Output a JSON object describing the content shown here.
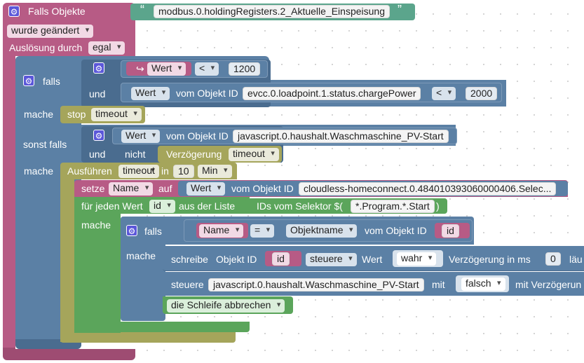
{
  "trigger": {
    "title": "Falls Objekte",
    "object_string": "modbus.0.holdingRegisters.2_Aktuelle_Einspeisung",
    "quote_open": "“",
    "quote_close": "”",
    "changed": "wurde geändert",
    "ausloesung_label": "Auslösung durch",
    "ausloesung_value": "egal"
  },
  "if1": {
    "falls": "falls",
    "und": "und",
    "mache": "mache",
    "sonst_falls": "sonst falls",
    "mache2": "mache",
    "cond1_var": "Wert",
    "cond1_op": "<",
    "cond1_num": "1200",
    "cond2_wert": "Wert",
    "cond2_vom": "vom Objekt ID",
    "cond2_obj": "evcc.0.loadpoint.1.status.chargePower",
    "cond2_op": "<",
    "cond2_num": "2000",
    "stop_label": "stop",
    "stop_value": "timeout",
    "else_wert": "Wert",
    "else_vom": "vom Objekt ID",
    "else_obj": "javascript.0.haushalt.Waschmaschine_PV-Start",
    "und2": "und",
    "nicht": "nicht",
    "verz_label": "Verzögerung",
    "verz_value": "timeout"
  },
  "timeout": {
    "ausfuehren": "Ausführen",
    "name": "timeout",
    "in": "in",
    "num": "10",
    "unit": "Min"
  },
  "setze": {
    "label": "setze",
    "var": "Name",
    "auf": "auf",
    "wert": "Wert",
    "vom": "vom Objekt ID",
    "obj": "cloudless-homeconnect.0.484010393060000406.Selec..."
  },
  "foreach": {
    "label": "für jeden Wert",
    "var": "id",
    "aus": "aus der Liste",
    "ids_label": "IDs vom Selektor $(",
    "selector": "*.Program.*.Start",
    "close": ")",
    "mache": "mache"
  },
  "if2": {
    "falls": "falls",
    "mache": "mache",
    "var": "Name",
    "op": "=",
    "objname": "Objektname",
    "vom": "vom Objekt ID",
    "id": "id"
  },
  "schreibe": {
    "label": "schreibe",
    "objid": "Objekt ID",
    "id": "id",
    "steuere": "steuere",
    "wert": "Wert",
    "val": "wahr",
    "verz": "Verzögerung in ms",
    "num": "0",
    "tail": "läu"
  },
  "steuere2": {
    "label": "steuere",
    "obj": "javascript.0.haushalt.Waschmaschine_PV-Start",
    "mit": "mit",
    "val": "falsch",
    "tail": "mit Verzögerun"
  },
  "break": {
    "label": "die Schleife abbrechen"
  },
  "colors": {
    "event": "#b75b85",
    "logic": "#5b80a5",
    "timer": "#a5a55b",
    "loop": "#5ba55b",
    "text": "#5ba58c",
    "variable": "#b75b85"
  }
}
